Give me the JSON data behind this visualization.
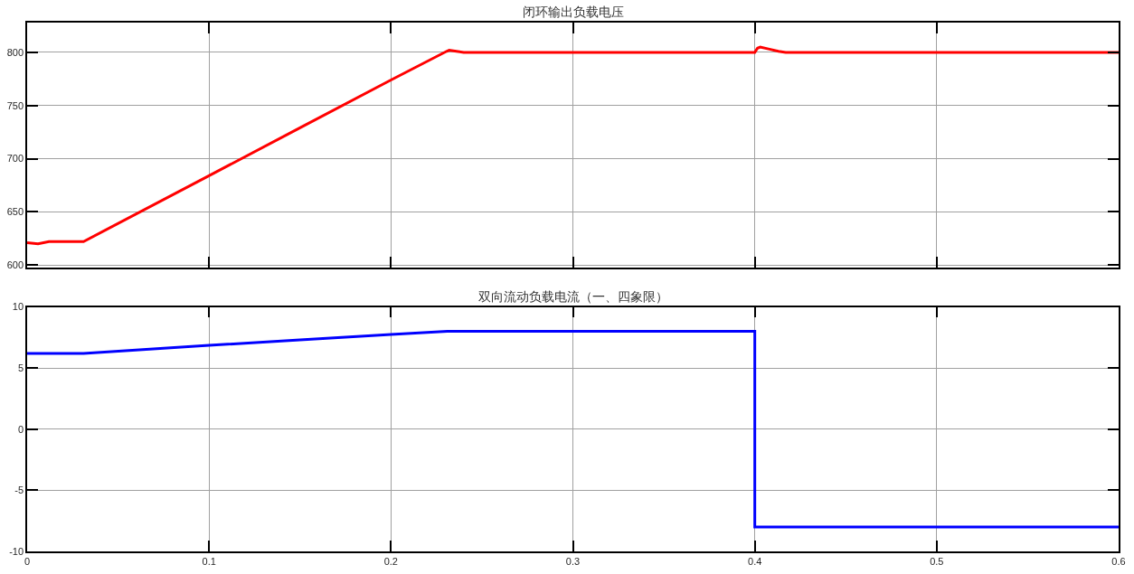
{
  "chart_data": [
    {
      "type": "line",
      "title": "闭环输出负载电压",
      "x": [
        0,
        0.006,
        0.012,
        0.031,
        0.1,
        0.15,
        0.2,
        0.2306,
        0.232,
        0.236,
        0.24,
        0.4,
        0.4015,
        0.403,
        0.408,
        0.413,
        0.417,
        0.6
      ],
      "series": [
        {
          "color": "#ff0000",
          "values": [
            621,
            620,
            622,
            622,
            684,
            729,
            774,
            801,
            802,
            801,
            800,
            800,
            804,
            805,
            803,
            801,
            800,
            800
          ]
        }
      ],
      "xlim": [
        0,
        0.6
      ],
      "xticks": [
        0,
        0.1,
        0.2,
        0.3,
        0.4,
        0.5,
        0.6
      ],
      "ylim": [
        598,
        828
      ],
      "yticks": [
        600,
        650,
        700,
        750,
        800
      ],
      "grid": true,
      "tick_labels": "y",
      "line_style": "solid"
    },
    {
      "type": "line",
      "title": "双向流动负载电流（一、四象限）",
      "x": [
        0,
        0.031,
        0.1,
        0.15,
        0.2,
        0.231,
        0.4,
        0.4,
        0.6
      ],
      "series": [
        {
          "color": "#0000ff",
          "values": [
            6.2,
            6.2,
            6.85,
            7.3,
            7.75,
            8.0,
            8.0,
            -8.0,
            -8.0
          ]
        }
      ],
      "xlim": [
        0,
        0.6
      ],
      "xticks": [
        0,
        0.1,
        0.2,
        0.3,
        0.4,
        0.5,
        0.6
      ],
      "ylim": [
        -10,
        10
      ],
      "yticks": [
        -10,
        -5,
        0,
        5,
        10
      ],
      "grid": true,
      "line_style": "solid"
    }
  ]
}
